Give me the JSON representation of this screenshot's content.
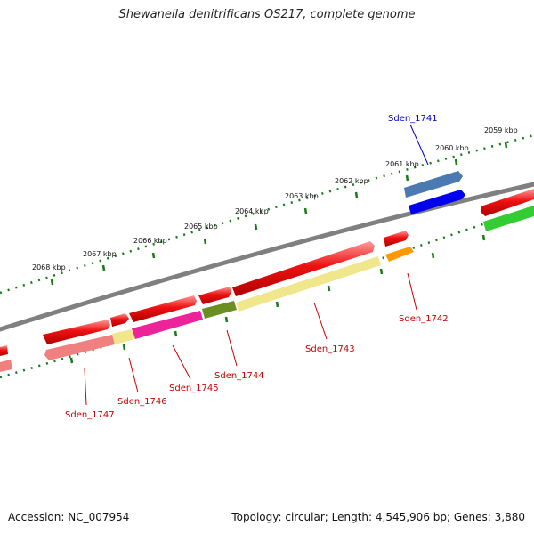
{
  "title": "Shewanella denitrificans OS217, complete genome",
  "footer": {
    "accession": "Accession: NC_007954",
    "topology": "Topology: circular; Length: 4,545,906 bp; Genes: 3,880"
  },
  "scale_labels": [
    "2068 kbp",
    "2067 kbp",
    "2066 kbp",
    "2065 kbp",
    "2064 kbp",
    "2063 kbp",
    "2062 kbp",
    "2061 kbp",
    "2060 kbp",
    "2059 kbp"
  ],
  "gene_labels": [
    {
      "text": "Sden_1741",
      "color": "#0000cc"
    },
    {
      "text": "Sden_1742",
      "color": "#cc0000"
    },
    {
      "text": "Sden_1743",
      "color": "#cc0000"
    },
    {
      "text": "Sden_1744",
      "color": "#cc0000"
    },
    {
      "text": "Sden_1745",
      "color": "#cc0000"
    },
    {
      "text": "Sden_1746",
      "color": "#cc0000"
    },
    {
      "text": "Sden_1747",
      "color": "#cc0000"
    }
  ],
  "colors": {
    "backbone": "#808080",
    "tick": "#1a7a1a",
    "cds": "#ee1111",
    "blue_strand": "#0000ee",
    "steel_blue": "#4a7ab0",
    "orange": "#ff9900",
    "khaki": "#f0e68c",
    "olive": "#6b8e23",
    "magenta": "#ee2299",
    "salmon": "#f08080",
    "green": "#33cc33"
  }
}
